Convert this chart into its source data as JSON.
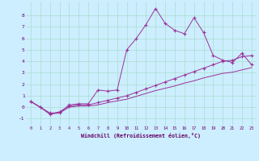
{
  "xlabel": "Windchill (Refroidissement éolien,°C)",
  "background_color": "#cceeff",
  "grid_color": "#aaddcc",
  "line_color": "#993399",
  "x_ticks": [
    0,
    1,
    2,
    3,
    4,
    5,
    6,
    7,
    8,
    9,
    10,
    11,
    12,
    13,
    14,
    15,
    16,
    17,
    18,
    19,
    20,
    21,
    22,
    23
  ],
  "y_ticks": [
    -1,
    0,
    1,
    2,
    3,
    4,
    5,
    6,
    7,
    8
  ],
  "ylim": [
    -1.6,
    9.2
  ],
  "xlim": [
    -0.5,
    23.5
  ],
  "series1_x": [
    0,
    1,
    2,
    3,
    4,
    5,
    6,
    7,
    8,
    9,
    10,
    11,
    12,
    13,
    14,
    15,
    16,
    17,
    18,
    19,
    20,
    21,
    22,
    23
  ],
  "series1_y": [
    0.5,
    0.0,
    -0.5,
    -0.5,
    0.2,
    0.3,
    0.3,
    1.5,
    1.4,
    1.5,
    5.0,
    6.0,
    7.2,
    8.6,
    7.3,
    6.7,
    6.4,
    7.8,
    6.5,
    4.5,
    4.1,
    3.9,
    4.7,
    3.7
  ],
  "series2_x": [
    0,
    1,
    2,
    3,
    4,
    5,
    6,
    7,
    8,
    9,
    10,
    11,
    12,
    13,
    14,
    15,
    16,
    17,
    18,
    19,
    20,
    21,
    22,
    23
  ],
  "series2_y": [
    0.5,
    0.0,
    -0.6,
    -0.4,
    0.1,
    0.2,
    0.2,
    0.4,
    0.6,
    0.8,
    1.0,
    1.3,
    1.6,
    1.9,
    2.2,
    2.5,
    2.8,
    3.1,
    3.4,
    3.7,
    4.0,
    4.1,
    4.4,
    4.5
  ],
  "series3_x": [
    0,
    1,
    2,
    3,
    4,
    5,
    6,
    7,
    8,
    9,
    10,
    11,
    12,
    13,
    14,
    15,
    16,
    17,
    18,
    19,
    20,
    21,
    22,
    23
  ],
  "series3_y": [
    0.5,
    0.0,
    -0.6,
    -0.5,
    0.0,
    0.1,
    0.1,
    0.2,
    0.4,
    0.55,
    0.7,
    0.95,
    1.2,
    1.45,
    1.65,
    1.85,
    2.1,
    2.3,
    2.55,
    2.75,
    2.95,
    3.05,
    3.25,
    3.45
  ]
}
